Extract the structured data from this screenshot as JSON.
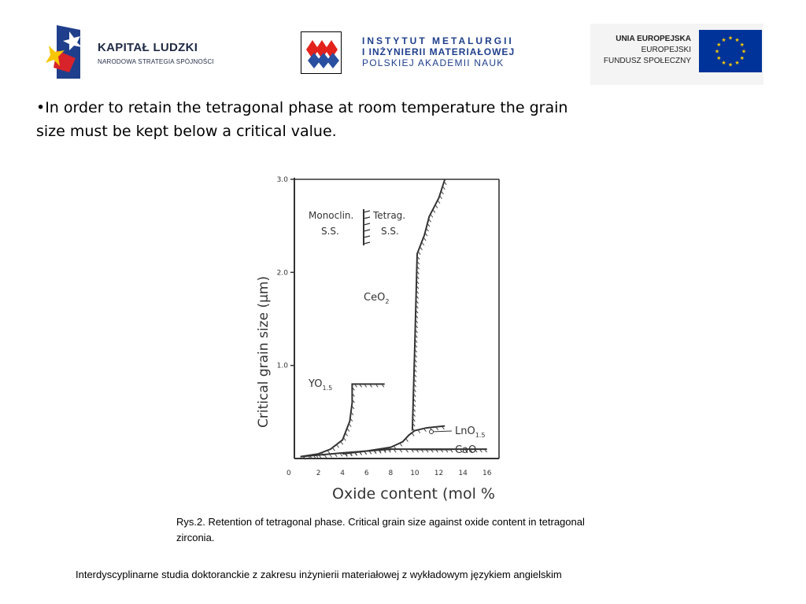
{
  "header": {
    "logo_left": {
      "title": "KAPITAŁ LUDZKI",
      "subtitle": "NARODOWA STRATEGIA SPÓJNOŚCI"
    },
    "logo_center": {
      "line1": "INSTYTUT METALURGII",
      "line2": "I INŻYNIERII MATERIAŁOWEJ",
      "line3": "POLSKIEJ AKADEMII NAUK"
    },
    "logo_right": {
      "line1": "UNIA EUROPEJSKA",
      "line2": "EUROPEJSKI",
      "line3": "FUNDUSZ SPOŁECZNY"
    }
  },
  "body": {
    "bullet": "•In order to retain the tetragonal phase at room temperature the grain size must be kept below a critical value."
  },
  "figure": {
    "chart_data": {
      "type": "line",
      "xlabel": "Oxide content (mol %",
      "ylabel": "Critical grain size (μm)",
      "xticks": [
        "0",
        "2",
        "4",
        "6",
        "8",
        "10",
        "12",
        "14",
        "16"
      ],
      "yticks": [
        "1.0",
        "2.0",
        "3.0"
      ],
      "xlim": [
        0,
        17
      ],
      "ylim": [
        0,
        3.0
      ],
      "annotations": {
        "monoclin": "Monoclin.",
        "ss1": "S.S.",
        "tetrag": "Tetrag.",
        "ss2": "S.S."
      },
      "series": [
        {
          "name": "YO1.5",
          "x": [
            0.5,
            2,
            3,
            4,
            4.3,
            4.6,
            4.8,
            4.8,
            6,
            7.5
          ],
          "y": [
            0.02,
            0.05,
            0.1,
            0.2,
            0.3,
            0.4,
            0.6,
            0.8,
            0.8,
            0.8
          ]
        },
        {
          "name": "CeO2",
          "x": [
            9.8,
            10,
            10.2,
            10.8,
            11.2,
            12,
            12.5
          ],
          "y": [
            0.3,
            1.2,
            2.2,
            2.4,
            2.6,
            2.8,
            3.0
          ]
        },
        {
          "name": "LnO1.5",
          "x": [
            4,
            6,
            8,
            9,
            9.5,
            10,
            11,
            12.5
          ],
          "y": [
            0.05,
            0.08,
            0.12,
            0.18,
            0.25,
            0.3,
            0.33,
            0.35
          ]
        },
        {
          "name": "CaO",
          "x": [
            0.5,
            4,
            8,
            9.5,
            16
          ],
          "y": [
            0.02,
            0.06,
            0.1,
            0.1,
            0.1
          ]
        }
      ]
    },
    "labels": {
      "yo": "YO",
      "yo_sub": "1.5",
      "ceo": "CeO",
      "ceo_sub": "2",
      "lno": "LnO",
      "lno_sub": "1.5",
      "cao": "CaO",
      "axis_zero": "0"
    }
  },
  "caption": "Rys.2. Retention of tetragonal phase. Critical grain size against oxide content in tetragonal zirconia.",
  "footer": "Interdyscyplinarne studia doktoranckie z zakresu inżynierii materiałowej z wykładowym językiem angielskim",
  "colors": {
    "eu_blue": "#003399",
    "eu_star": "#ffcc00",
    "imz_red": "#e3221c",
    "imz_blue": "#2a4fa0"
  }
}
